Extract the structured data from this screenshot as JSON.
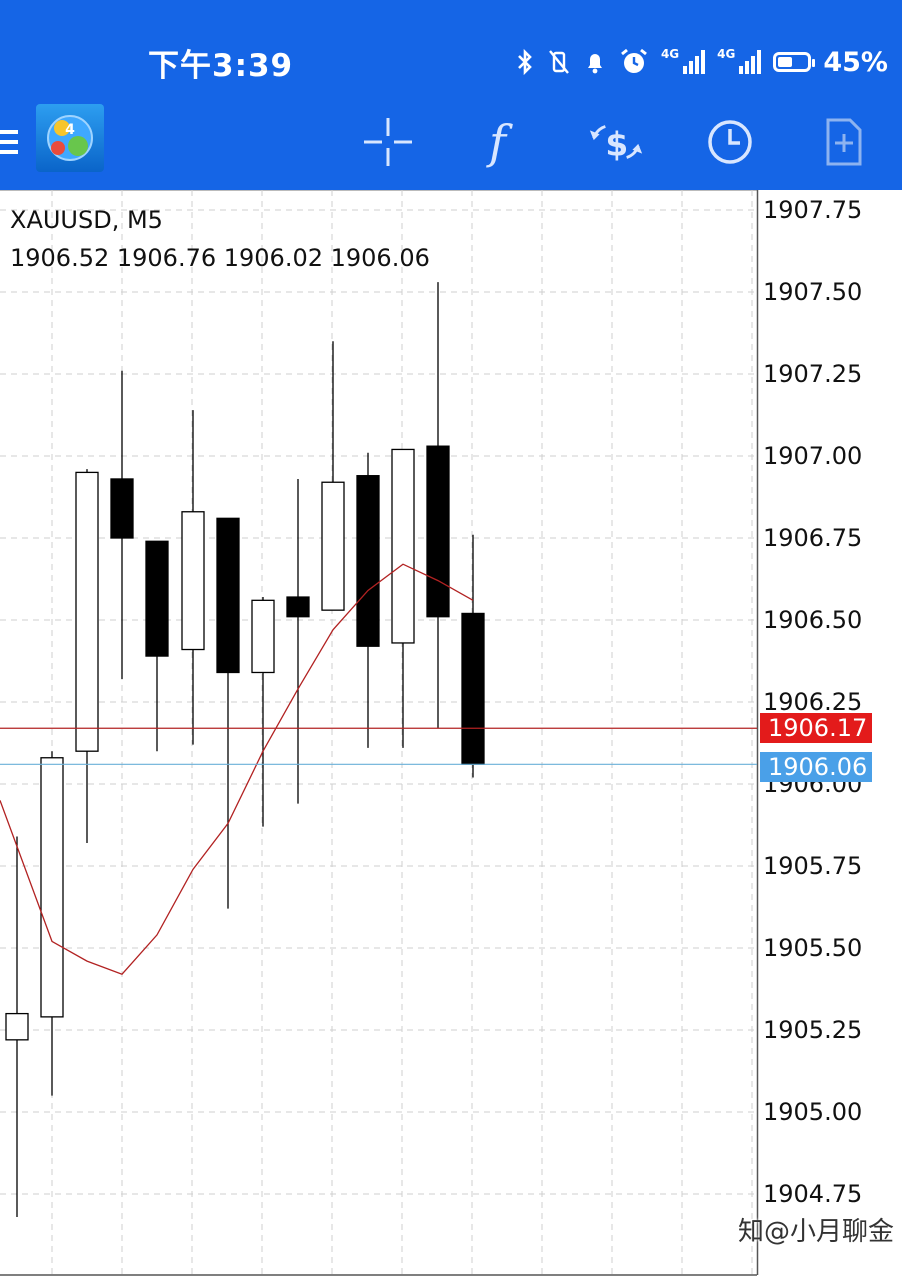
{
  "status_bar": {
    "time": "下午3:39",
    "network_1": "4G",
    "network_2": "4G",
    "battery": "45%"
  },
  "toolbar": {
    "icons": [
      "menu-icon",
      "app-logo-icon",
      "crosshair-icon",
      "indicators-icon",
      "trade-icon",
      "history-icon",
      "new-order-icon"
    ]
  },
  "chart": {
    "symbol": "XAUUSD, M5",
    "ohlc": "1906.52 1906.76 1906.02 1906.06",
    "y_axis_labels": [
      "1907.75",
      "1907.50",
      "1907.25",
      "1907.00",
      "1906.75",
      "1906.50",
      "1906.25",
      "1906.00",
      "1905.75",
      "1905.50",
      "1905.25",
      "1905.00",
      "1904.75"
    ],
    "current_price_red": "1906.17",
    "current_price_blue": "1906.06",
    "colors": {
      "red": "#e31b1b",
      "blue": "#4aa0e8",
      "ma_line": "#b22222",
      "grid": "#cfcfcf"
    }
  },
  "chart_data": {
    "type": "candlestick",
    "symbol": "XAUUSD",
    "timeframe": "M5",
    "ylim": [
      1904.6,
      1907.9
    ],
    "candles": [
      {
        "o": 1905.22,
        "h": 1905.84,
        "l": 1904.68,
        "c": 1905.3
      },
      {
        "o": 1905.29,
        "h": 1906.1,
        "l": 1905.05,
        "c": 1906.08
      },
      {
        "o": 1906.1,
        "h": 1906.96,
        "l": 1905.82,
        "c": 1906.95
      },
      {
        "o": 1906.93,
        "h": 1907.26,
        "l": 1906.32,
        "c": 1906.75
      },
      {
        "o": 1906.74,
        "h": 1906.74,
        "l": 1906.1,
        "c": 1906.39
      },
      {
        "o": 1906.41,
        "h": 1907.14,
        "l": 1906.12,
        "c": 1906.83
      },
      {
        "o": 1906.81,
        "h": 1906.81,
        "l": 1905.62,
        "c": 1906.34
      },
      {
        "o": 1906.34,
        "h": 1906.57,
        "l": 1905.87,
        "c": 1906.56
      },
      {
        "o": 1906.57,
        "h": 1906.93,
        "l": 1905.94,
        "c": 1906.51
      },
      {
        "o": 1906.53,
        "h": 1907.35,
        "l": 1906.53,
        "c": 1906.92
      },
      {
        "o": 1906.94,
        "h": 1907.01,
        "l": 1906.11,
        "c": 1906.42
      },
      {
        "o": 1906.43,
        "h": 1907.02,
        "l": 1906.11,
        "c": 1907.02
      },
      {
        "o": 1907.03,
        "h": 1907.53,
        "l": 1906.17,
        "c": 1906.51
      },
      {
        "o": 1906.52,
        "h": 1906.76,
        "l": 1906.02,
        "c": 1906.06
      }
    ],
    "moving_average": [
      1905.95,
      1905.52,
      1905.46,
      1905.42,
      1905.54,
      1905.74,
      1905.88,
      1906.1,
      1906.29,
      1906.47,
      1906.59,
      1906.67,
      1906.62,
      1906.56
    ]
  }
}
